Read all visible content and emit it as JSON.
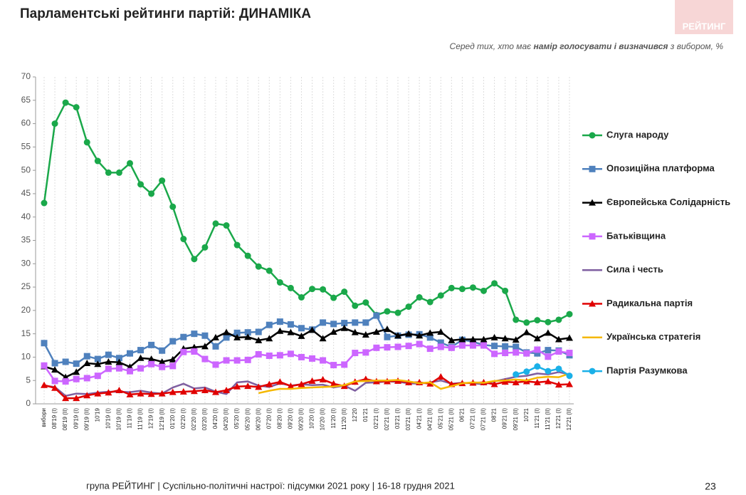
{
  "header": {
    "title": "Парламентські рейтинги партій: ДИНАМІКА",
    "logo": "РЕЙТИНГ",
    "subtitle": [
      "Серед тих, хто має ",
      "намір голосувати і визначився",
      " з вибором, %"
    ]
  },
  "chart_data": {
    "type": "line",
    "grid": "x",
    "legend": "right",
    "categories": [
      "вибори",
      "08'19 (I)",
      "08'19 (II)",
      "09'19 (I)",
      "09'19 (II)",
      "10'19",
      "10'19 (I)",
      "10'19 (II)",
      "11'19 (I)",
      "11'19 (II)",
      "12'19 (I)",
      "12'19 (II)",
      "01'20 (I)",
      "02'20 (I)",
      "02'20 (II)",
      "03'20 (II)",
      "04'20 (I)",
      "04'20 (II)",
      "05'20 (I)",
      "05'20 (II)",
      "06'20 (II)",
      "07'20 (I)",
      "08'20 (I)",
      "09'20 (I)",
      "09'20 (II)",
      "10'20 (I)",
      "10'20 (II)",
      "11'20 (I)",
      "11'20 (II)",
      "12'20",
      "01'21",
      "02'21 (I)",
      "02'21 (II)",
      "03'21 (I)",
      "03'21 (II)",
      "04'21 (I)",
      "04'21 (II)",
      "05'21 (I)",
      "05'21 (II)",
      "06'21",
      "07'21 (I)",
      "07'21 (II)",
      "08'21",
      "09'21 (I)",
      "09'21 (II)",
      "10'21",
      "11'21 (I)",
      "11'21 (II)",
      "12'21 (I)",
      "12'21 (II)"
    ],
    "ylim": [
      0,
      70
    ],
    "yticks": [
      0,
      5,
      10,
      15,
      20,
      25,
      30,
      35,
      40,
      45,
      50,
      55,
      60,
      65,
      70
    ],
    "series": [
      {
        "name": "Слуга народу",
        "color": "#1aa84a",
        "marker": "circle",
        "values": [
          43,
          60,
          64.5,
          63.5,
          56,
          52,
          49.5,
          49.5,
          51.5,
          47,
          45,
          47.8,
          42.2,
          35.3,
          31,
          33.5,
          38.6,
          38.2,
          34,
          31.7,
          29.4,
          28.5,
          26,
          24.8,
          22.8,
          24.6,
          24.5,
          22.7,
          24,
          21,
          21.7,
          19,
          19.8,
          19.5,
          20.8,
          22.8,
          21.8,
          23.2,
          24.8,
          24.6,
          24.9,
          24.2,
          25.8,
          24.2,
          18,
          17.4,
          17.9,
          17.5,
          18,
          19.2
        ]
      },
      {
        "name": "Опозиційна платформа",
        "color": "#4f81bd",
        "marker": "square",
        "values": [
          13,
          8.7,
          9,
          8.6,
          10.2,
          9.6,
          10.5,
          9.8,
          10.8,
          11.5,
          12.6,
          11.4,
          13.4,
          14.3,
          15,
          14.6,
          12.3,
          14.2,
          15.2,
          15.3,
          15.4,
          16.9,
          17.6,
          17,
          16.2,
          15.9,
          17.4,
          17.1,
          17.3,
          17.4,
          17.4,
          18.9,
          14.3,
          14.6,
          14.8,
          14.9,
          14.2,
          13.1,
          12.2,
          13.7,
          13.3,
          12.6,
          12.4,
          12.3,
          12.2,
          11,
          10.8,
          11.5,
          11.4,
          10.4
        ]
      },
      {
        "name": "Європейська Солідарність",
        "color": "#000000",
        "marker": "triangle",
        "values": [
          8,
          7.3,
          5.7,
          6.8,
          8.7,
          8.5,
          9,
          8.9,
          7.9,
          9.8,
          9.6,
          9,
          9.5,
          11.8,
          12.1,
          12.3,
          14.2,
          15.3,
          14.2,
          14.3,
          13.6,
          14,
          15.6,
          15.3,
          14.5,
          15.8,
          14,
          15.4,
          16.2,
          15.3,
          14.8,
          15.4,
          16,
          14.6,
          15,
          14.6,
          15.2,
          15.4,
          13.6,
          13.8,
          13.8,
          13.8,
          14.2,
          14,
          13.7,
          15.3,
          14,
          15.2,
          13.8,
          14.1
        ]
      },
      {
        "name": "Батьківщина",
        "color": "#cc66ff",
        "marker": "square",
        "values": [
          8.2,
          4.9,
          4.8,
          5.3,
          5.5,
          6,
          7.5,
          7.6,
          7,
          7.6,
          8.5,
          7.9,
          8.1,
          11.1,
          11.2,
          9.6,
          8.4,
          9.3,
          9.3,
          9.4,
          10.6,
          10.3,
          10.4,
          10.7,
          10,
          9.7,
          9.3,
          8.3,
          8.4,
          10.9,
          11,
          12,
          12.1,
          12.2,
          12.4,
          12.8,
          11.8,
          12.2,
          12,
          12.5,
          12.5,
          12.5,
          10.7,
          10.9,
          11,
          10.8,
          11.6,
          10.1,
          11.2,
          10.9
        ]
      },
      {
        "name": "Сила і честь",
        "color": "#7f5fa0",
        "marker": "none",
        "values": [
          3.9,
          3.6,
          1.7,
          2.2,
          2.1,
          2.4,
          2.6,
          2.6,
          2.5,
          2.8,
          2.4,
          2.2,
          3.5,
          4.3,
          3.3,
          3.5,
          2.6,
          2.1,
          4.6,
          4.8,
          3.9,
          3.6,
          4.4,
          3.9,
          4.2,
          4,
          4.1,
          3.5,
          3.9,
          2.8,
          4.5,
          4.6,
          4.8,
          4.7,
          4.4,
          4.3,
          4.6,
          5,
          4.3,
          4.5,
          4.4,
          4.2,
          4.8,
          5.3,
          5.8,
          6,
          6.5,
          6.3,
          6.8,
          6.3
        ]
      },
      {
        "name": "Радикальна партія",
        "color": "#e00000",
        "marker": "triangle",
        "values": [
          4,
          3.4,
          1.2,
          1.2,
          1.8,
          2.2,
          2.4,
          2.9,
          2,
          2.2,
          2.1,
          2.2,
          2.5,
          2.6,
          2.7,
          2.9,
          2.5,
          2.9,
          3.7,
          3.8,
          3.6,
          4.2,
          4.7,
          3.8,
          4.2,
          4.9,
          5.2,
          4.3,
          3.8,
          4.7,
          5.3,
          4.8,
          4.8,
          4.9,
          4.6,
          4.6,
          4.3,
          5.8,
          4.2,
          4.4,
          4.5,
          4.6,
          4.2,
          4.7,
          4.6,
          4.8,
          4.6,
          4.8,
          4.1,
          4.2
        ]
      },
      {
        "name": "Українська стратегія",
        "color": "#f5b800",
        "marker": "none",
        "values": [
          null,
          null,
          null,
          null,
          null,
          null,
          null,
          null,
          null,
          null,
          null,
          null,
          null,
          null,
          null,
          null,
          null,
          null,
          null,
          null,
          2.3,
          2.8,
          3.2,
          3.2,
          3.4,
          3.5,
          3.6,
          3.7,
          4,
          4.8,
          4.9,
          5,
          5,
          5.1,
          4.8,
          4.4,
          4.6,
          3.2,
          3.8,
          4.4,
          4.6,
          4.5,
          4.9,
          5,
          5.2,
          5,
          5.6,
          5.8,
          5.7,
          6.5
        ]
      },
      {
        "name": "Партія Разумкова",
        "color": "#1ab0e8",
        "marker": "circle",
        "values": [
          null,
          null,
          null,
          null,
          null,
          null,
          null,
          null,
          null,
          null,
          null,
          null,
          null,
          null,
          null,
          null,
          null,
          null,
          null,
          null,
          null,
          null,
          null,
          null,
          null,
          null,
          null,
          null,
          null,
          null,
          null,
          null,
          null,
          null,
          null,
          null,
          null,
          null,
          null,
          null,
          null,
          null,
          null,
          null,
          6.3,
          6.9,
          8,
          7,
          7.5,
          6
        ]
      }
    ]
  },
  "footer": {
    "text": "група РЕЙТИНГ | Суспільно-політичні настрої: підсумки 2021 року | 16-18 грудня 2021",
    "page": "23"
  }
}
